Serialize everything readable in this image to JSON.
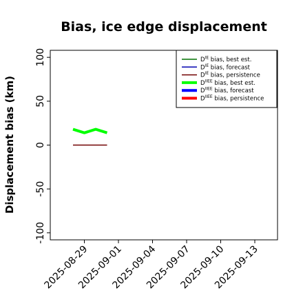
{
  "chart_data": {
    "type": "line",
    "title": "Bias, ice edge displacement",
    "xlabel": "",
    "ylabel": "Displacement bias (km)",
    "xlim": [
      "2025-08-26",
      "2025-09-15"
    ],
    "ylim": [
      -108,
      108
    ],
    "grid": false,
    "legend_position": "top-right",
    "x_ticks": [
      "2025-08-29",
      "2025-09-01",
      "2025-09-04",
      "2025-09-07",
      "2025-09-10",
      "2025-09-13"
    ],
    "x_tick_colors": [
      "#000000",
      "#000000",
      "#1a8c1a",
      "#000000",
      "#000000",
      "#000000"
    ],
    "y_ticks": [
      {
        "value": 100,
        "label": "100"
      },
      {
        "value": 50,
        "label": "50"
      },
      {
        "value": 0,
        "label": "0"
      },
      {
        "value": -50,
        "label": "-50"
      },
      {
        "value": -100,
        "label": "-100"
      }
    ],
    "series": [
      {
        "legend_base": "D",
        "legend_sup": "IE",
        "legend_rest": " bias, best est.",
        "color": "#007000",
        "line_width": 1.5,
        "x": [],
        "y": []
      },
      {
        "legend_base": "D",
        "legend_sup": "IE",
        "legend_rest": " bias, forecast",
        "color": "#0000b0",
        "line_width": 1.5,
        "x": [],
        "y": []
      },
      {
        "legend_base": "D",
        "legend_sup": "IE",
        "legend_rest": " bias, persistence",
        "color": "#700000",
        "line_width": 1.5,
        "x": [
          "2025-08-28",
          "2025-08-29",
          "2025-08-30",
          "2025-08-31"
        ],
        "y": [
          0,
          0,
          0,
          0
        ]
      },
      {
        "legend_base": "D",
        "legend_sup": "IIEE",
        "legend_rest": " bias, best est.",
        "color": "#00ff00",
        "line_width": 4,
        "x": [
          "2025-08-28",
          "2025-08-29",
          "2025-08-30",
          "2025-08-31"
        ],
        "y": [
          18,
          14,
          18,
          14
        ]
      },
      {
        "legend_base": "D",
        "legend_sup": "IIEE",
        "legend_rest": " bias, forecast",
        "color": "#0000ff",
        "line_width": 4,
        "x": [],
        "y": []
      },
      {
        "legend_base": "D",
        "legend_sup": "IIEE",
        "legend_rest": " bias, persistence",
        "color": "#ff0000",
        "line_width": 4,
        "x": [],
        "y": []
      }
    ]
  }
}
